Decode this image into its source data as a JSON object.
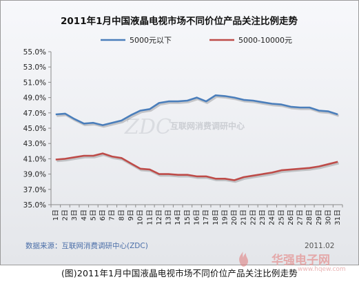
{
  "chart_data": {
    "type": "line",
    "title": "2011年1月中国液晶电视市场不同价位产品关注比例走势",
    "categories": [
      "1日",
      "2日",
      "3日",
      "4日",
      "5日",
      "6日",
      "7日",
      "8日",
      "9日",
      "10日",
      "11日",
      "12日",
      "13日",
      "14日",
      "15日",
      "16日",
      "17日",
      "18日",
      "19日",
      "20日",
      "21日",
      "22日",
      "23日",
      "24日",
      "25日",
      "26日",
      "27日",
      "28日",
      "29日",
      "30日",
      "31日"
    ],
    "series": [
      {
        "name": "5000元以下",
        "color": "#4a7ebb",
        "values": [
          46.8,
          46.9,
          46.2,
          45.6,
          45.7,
          45.4,
          45.7,
          46.0,
          46.7,
          47.3,
          47.5,
          48.3,
          48.5,
          48.5,
          48.6,
          49.0,
          48.5,
          49.3,
          49.2,
          49.0,
          48.7,
          48.6,
          48.4,
          48.2,
          48.1,
          47.8,
          47.7,
          47.7,
          47.3,
          47.2,
          46.8
        ]
      },
      {
        "name": "5000-10000元",
        "color": "#be4b48",
        "values": [
          40.9,
          41.0,
          41.2,
          41.4,
          41.4,
          41.7,
          41.3,
          41.1,
          40.4,
          39.7,
          39.6,
          39.0,
          39.0,
          38.9,
          38.9,
          38.7,
          38.7,
          38.4,
          38.4,
          38.2,
          38.6,
          38.8,
          39.0,
          39.2,
          39.5,
          39.6,
          39.7,
          39.8,
          40.0,
          40.3,
          40.6
        ]
      }
    ],
    "ylim": [
      35,
      55
    ],
    "yticks": [
      "55.0%",
      "53.0%",
      "51.0%",
      "49.0%",
      "47.0%",
      "45.0%",
      "43.0%",
      "41.0%",
      "39.0%",
      "37.0%",
      "35.0%"
    ],
    "legend_position": "top",
    "grid": false,
    "source": "数据来源：互联网消费调研中心(ZDC)",
    "date": "2011.02",
    "watermark": "互联网消费调研中心"
  },
  "caption": "(图)2011年1月中国液晶电视市场不同价位产品关注比例走势",
  "site_watermark": {
    "brand": "华强电子网",
    "url": "www.hqew.com"
  }
}
